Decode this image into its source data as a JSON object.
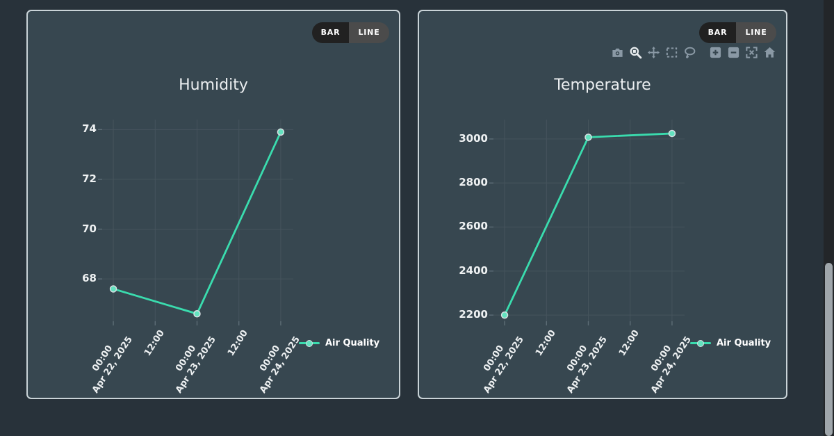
{
  "panels": [
    {
      "toggle": {
        "bar_label": "BAR",
        "line_label": "LINE",
        "active": "LINE"
      }
    },
    {
      "toggle": {
        "bar_label": "BAR",
        "line_label": "LINE",
        "active": "LINE"
      }
    }
  ],
  "modebar": {
    "icons": [
      {
        "name": "camera-icon",
        "active": false,
        "group_start": false
      },
      {
        "name": "zoom-icon",
        "active": true,
        "group_start": false
      },
      {
        "name": "pan-icon",
        "active": false,
        "group_start": false
      },
      {
        "name": "box-select-icon",
        "active": false,
        "group_start": false
      },
      {
        "name": "lasso-icon",
        "active": false,
        "group_start": false
      },
      {
        "name": "zoom-in-icon",
        "active": false,
        "group_start": true
      },
      {
        "name": "zoom-out-icon",
        "active": false,
        "group_start": false
      },
      {
        "name": "autoscale-icon",
        "active": false,
        "group_start": false
      },
      {
        "name": "home-icon",
        "active": false,
        "group_start": false
      }
    ]
  },
  "colors": {
    "page_bg": "#28323a",
    "panel_bg": "#374750",
    "panel_border": "#c9d3d7",
    "grid": "#46545d",
    "line": "#3adcae",
    "marker": "#63e2bf",
    "text": "#eef1f2"
  },
  "chart_data": [
    {
      "type": "line",
      "title": "Humidity",
      "legend_position": "right-bottom",
      "grid": true,
      "line_color": "#3adcae",
      "y_ticks": [
        74,
        72,
        70,
        68
      ],
      "ylim": [
        66.3,
        74.4
      ],
      "x_tick_hours": [
        0,
        12,
        24,
        36,
        48
      ],
      "x_ticks": [
        {
          "hour": 0,
          "lines": [
            "00:00",
            "Apr 22, 2025"
          ]
        },
        {
          "hour": 12,
          "lines": [
            "12:00"
          ]
        },
        {
          "hour": 24,
          "lines": [
            "00:00",
            "Apr 23, 2025"
          ]
        },
        {
          "hour": 36,
          "lines": [
            "12:00"
          ]
        },
        {
          "hour": 48,
          "lines": [
            "00:00",
            "Apr 24, 2025"
          ]
        }
      ],
      "xlim_hours": [
        -3.2,
        51.6
      ],
      "series": [
        {
          "name": "Air Quality",
          "x_hours": [
            0,
            24,
            48
          ],
          "x": [
            "Apr 22, 2025 00:00",
            "Apr 23, 2025 00:00",
            "Apr 24, 2025 00:00"
          ],
          "values": [
            67.6,
            66.6,
            73.9
          ]
        }
      ]
    },
    {
      "type": "line",
      "title": "Temperature",
      "legend_position": "right-bottom",
      "grid": true,
      "line_color": "#3adcae",
      "y_ticks": [
        3000,
        2800,
        2600,
        2400,
        2200
      ],
      "ylim": [
        2172,
        3088
      ],
      "x_tick_hours": [
        0,
        12,
        24,
        36,
        48
      ],
      "x_ticks": [
        {
          "hour": 0,
          "lines": [
            "00:00",
            "Apr 22, 2025"
          ]
        },
        {
          "hour": 12,
          "lines": [
            "12:00"
          ]
        },
        {
          "hour": 24,
          "lines": [
            "00:00",
            "Apr 23, 2025"
          ]
        },
        {
          "hour": 36,
          "lines": [
            "12:00"
          ]
        },
        {
          "hour": 48,
          "lines": [
            "00:00",
            "Apr 24, 2025"
          ]
        }
      ],
      "xlim_hours": [
        -3.2,
        51.6
      ],
      "series": [
        {
          "name": "Air Quality",
          "x_hours": [
            0,
            24,
            48
          ],
          "x": [
            "Apr 22, 2025 00:00",
            "Apr 23, 2025 00:00",
            "Apr 24, 2025 00:00"
          ],
          "values": [
            2200,
            3008,
            3025
          ]
        }
      ]
    }
  ]
}
